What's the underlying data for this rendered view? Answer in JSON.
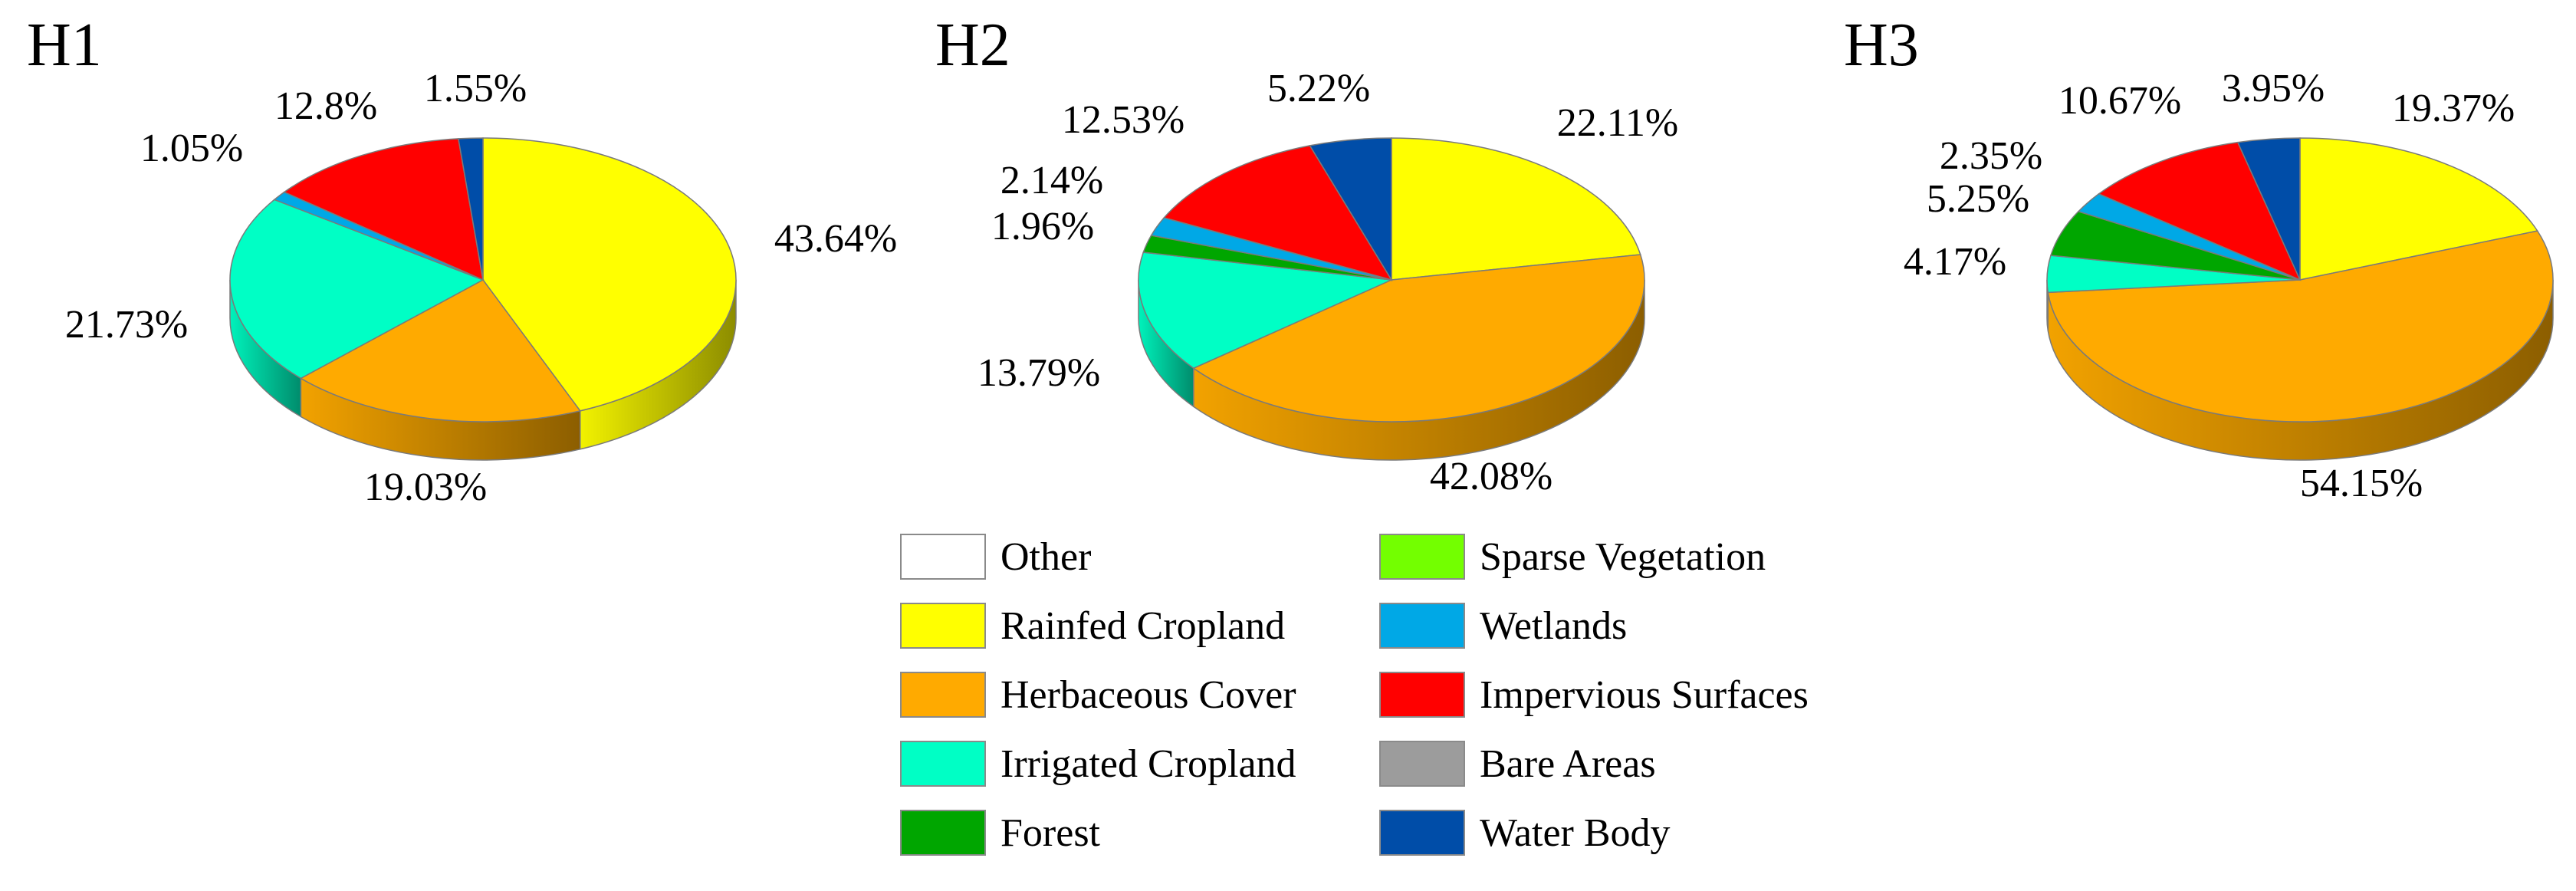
{
  "chart_data": [
    {
      "type": "pie",
      "title": "H1",
      "slices": [
        {
          "category": "Rainfed Cropland",
          "value": 43.64,
          "label": "43.64%"
        },
        {
          "category": "Herbaceous Cover",
          "value": 19.03,
          "label": "19.03%"
        },
        {
          "category": "Irrigated Cropland",
          "value": 21.73,
          "label": "21.73%"
        },
        {
          "category": "Wetlands",
          "value": 1.05,
          "label": "1.05%"
        },
        {
          "category": "Impervious Surfaces",
          "value": 12.8,
          "label": "12.8%"
        },
        {
          "category": "Water Body",
          "value": 1.55,
          "label": "1.55%"
        }
      ]
    },
    {
      "type": "pie",
      "title": "H2",
      "slices": [
        {
          "category": "Rainfed Cropland",
          "value": 22.11,
          "label": "22.11%"
        },
        {
          "category": "Herbaceous Cover",
          "value": 42.08,
          "label": "42.08%"
        },
        {
          "category": "Irrigated Cropland",
          "value": 13.79,
          "label": "13.79%"
        },
        {
          "category": "Forest",
          "value": 1.96,
          "label": "1.96%"
        },
        {
          "category": "Wetlands",
          "value": 2.14,
          "label": "2.14%"
        },
        {
          "category": "Impervious Surfaces",
          "value": 12.53,
          "label": "12.53%"
        },
        {
          "category": "Water Body",
          "value": 5.22,
          "label": "5.22%"
        }
      ]
    },
    {
      "type": "pie",
      "title": "H3",
      "slices": [
        {
          "category": "Rainfed Cropland",
          "value": 19.37,
          "label": "19.37%"
        },
        {
          "category": "Herbaceous Cover",
          "value": 54.15,
          "label": "54.15%"
        },
        {
          "category": "Irrigated Cropland",
          "value": 4.17,
          "label": "4.17%"
        },
        {
          "category": "Forest",
          "value": 5.25,
          "label": "5.25%"
        },
        {
          "category": "Wetlands",
          "value": 2.35,
          "label": "2.35%"
        },
        {
          "category": "Impervious Surfaces",
          "value": 10.67,
          "label": "10.67%"
        },
        {
          "category": "Water Body",
          "value": 3.95,
          "label": "3.95%"
        }
      ]
    }
  ],
  "legend": {
    "placement": "bottom-center",
    "items": [
      {
        "name": "Other",
        "color": "#ffffff"
      },
      {
        "name": "Rainfed Cropland",
        "color": "#ffff00"
      },
      {
        "name": "Herbaceous Cover",
        "color": "#ffaa00"
      },
      {
        "name": "Irrigated Cropland",
        "color": "#00ffc5"
      },
      {
        "name": "Forest",
        "color": "#00a600"
      },
      {
        "name": "Sparse Vegetation",
        "color": "#73ff00"
      },
      {
        "name": "Wetlands",
        "color": "#00a8e6"
      },
      {
        "name": "Impervious Surfaces",
        "color": "#ff0000"
      },
      {
        "name": "Bare Areas",
        "color": "#9c9c9c"
      },
      {
        "name": "Water Body",
        "color": "#004da8"
      }
    ]
  }
}
